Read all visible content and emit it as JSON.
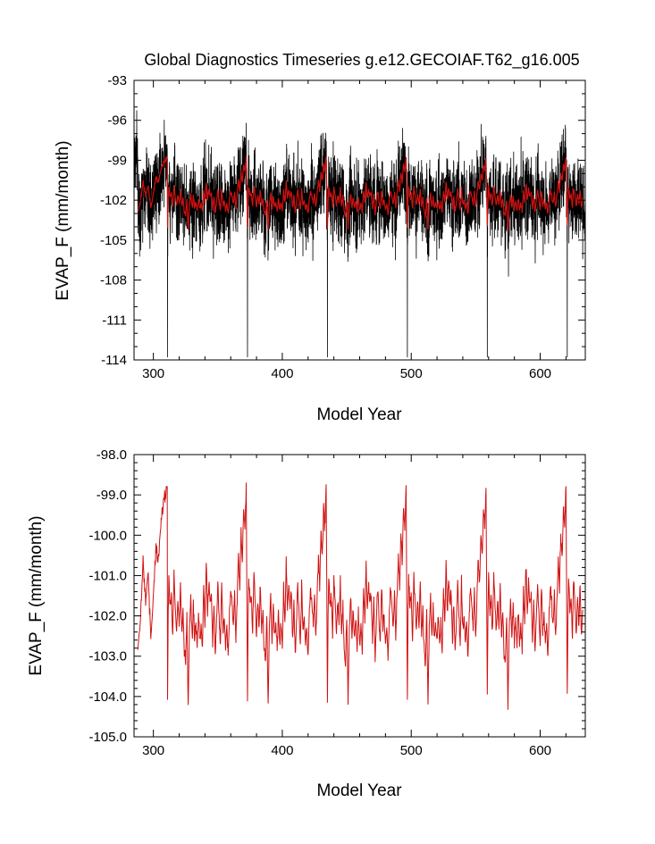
{
  "chart_data": [
    {
      "type": "line",
      "title": "Global Diagnostics Timeseries g.e12.GECOIAF.T62_g16.005",
      "xlabel": "Model Year",
      "ylabel": "EVAP_F (mm/month)",
      "xlim": [
        285,
        635
      ],
      "ylim": [
        -114,
        -93
      ],
      "x_ticks": [
        300,
        400,
        500,
        600
      ],
      "x_tick_labels": [
        "300",
        "400",
        "500",
        "600"
      ],
      "y_ticks": [
        -114,
        -111,
        -108,
        -105,
        -102,
        -99,
        -96,
        -93
      ],
      "y_tick_labels": [
        "-114",
        "-111",
        "-108",
        "-105",
        "-102",
        "-99",
        "-96",
        "-93"
      ],
      "grid": false,
      "series": [
        {
          "color": "#000000",
          "kind": "monthly",
          "x_range": [
            285,
            635
          ],
          "cycle_years": 62,
          "cycle_start": 311,
          "typical_range": [
            -108,
            -96
          ],
          "spike_min": -113.8,
          "spike_years": [
            311,
            373,
            435,
            497,
            559,
            621
          ]
        },
        {
          "color": "#d01010",
          "kind": "annual",
          "x_range": [
            288,
            633
          ],
          "typical_range": [
            -104.3,
            -98.8
          ]
        }
      ]
    },
    {
      "type": "line",
      "title": "",
      "xlabel": "Model Year",
      "ylabel": "EVAP_F (mm/month)",
      "xlim": [
        285,
        635
      ],
      "ylim": [
        -105,
        -98
      ],
      "x_ticks": [
        300,
        400,
        500,
        600
      ],
      "x_tick_labels": [
        "300",
        "400",
        "500",
        "600"
      ],
      "y_ticks": [
        -105,
        -104,
        -103,
        -102,
        -101,
        -100,
        -99,
        -98
      ],
      "y_tick_labels": [
        "-105.0",
        "-104.0",
        "-103.0",
        "-102.0",
        "-101.0",
        "-100.0",
        "-99.0",
        "-98.0"
      ],
      "grid": false,
      "series": [
        {
          "color": "#d01010",
          "kind": "annual",
          "x_range": [
            288,
            633
          ],
          "cycle_years": 62,
          "cycle_start": 311,
          "cycle_profile": [
            [
              0,
              -104.1
            ],
            [
              0.5,
              -102.0
            ],
            [
              1,
              -101.0
            ],
            [
              2,
              -101.8
            ],
            [
              3,
              -101.5
            ],
            [
              4,
              -102.5
            ],
            [
              5,
              -101.0
            ],
            [
              6,
              -101.7
            ],
            [
              7,
              -102.4
            ],
            [
              8,
              -101.6
            ],
            [
              9,
              -102.3
            ],
            [
              10,
              -101.2
            ],
            [
              11,
              -102.5
            ],
            [
              12,
              -101.8
            ],
            [
              13,
              -102.9
            ],
            [
              14,
              -103.2
            ],
            [
              15,
              -102.0
            ],
            [
              16,
              -104.25
            ],
            [
              17,
              -102.3
            ],
            [
              18,
              -101.5
            ],
            [
              19,
              -102.6
            ],
            [
              20,
              -101.8
            ],
            [
              21,
              -102.6
            ],
            [
              22,
              -102.1
            ],
            [
              23,
              -102.8
            ],
            [
              24,
              -101.9
            ],
            [
              25,
              -102.7
            ],
            [
              26,
              -102.2
            ],
            [
              27,
              -102.9
            ],
            [
              28,
              -101.3
            ],
            [
              29,
              -102.2
            ],
            [
              30,
              -100.6
            ],
            [
              31,
              -101.9
            ],
            [
              32,
              -101.2
            ],
            [
              33,
              -101.7
            ],
            [
              34,
              -101.4
            ],
            [
              35,
              -102.6
            ],
            [
              36,
              -101.6
            ],
            [
              37,
              -103.0
            ],
            [
              38,
              -102.1
            ],
            [
              39,
              -101.2
            ],
            [
              40,
              -102.0
            ],
            [
              41,
              -102.7
            ],
            [
              42,
              -101.2
            ],
            [
              43,
              -102.3
            ],
            [
              44,
              -102.0
            ],
            [
              45,
              -102.7
            ],
            [
              46,
              -102.2
            ],
            [
              47,
              -103.1
            ],
            [
              48,
              -101.9
            ],
            [
              49,
              -101.3
            ],
            [
              50,
              -101.7
            ],
            [
              51,
              -102.3
            ],
            [
              52,
              -101.4
            ],
            [
              53,
              -102.6
            ],
            [
              54,
              -101.5
            ],
            [
              55,
              -100.5
            ],
            [
              56,
              -101.3
            ],
            [
              57,
              -99.9
            ],
            [
              58,
              -100.6
            ],
            [
              59,
              -99.3
            ],
            [
              60,
              -99.8
            ],
            [
              61,
              -98.8
            ],
            [
              62,
              -104.1
            ]
          ],
          "pre_start": [
            [
              288,
              -102.9
            ],
            [
              290,
              -102.1
            ],
            [
              292,
              -100.6
            ],
            [
              294,
              -101.6
            ],
            [
              296,
              -100.9
            ],
            [
              298,
              -102.6
            ],
            [
              300,
              -101.5
            ],
            [
              302,
              -100.3
            ],
            [
              304,
              -100.6
            ],
            [
              306,
              -99.6
            ],
            [
              308,
              -99.2
            ],
            [
              310,
              -98.8
            ]
          ],
          "typical_range": [
            -104.3,
            -98.8
          ]
        }
      ]
    }
  ]
}
